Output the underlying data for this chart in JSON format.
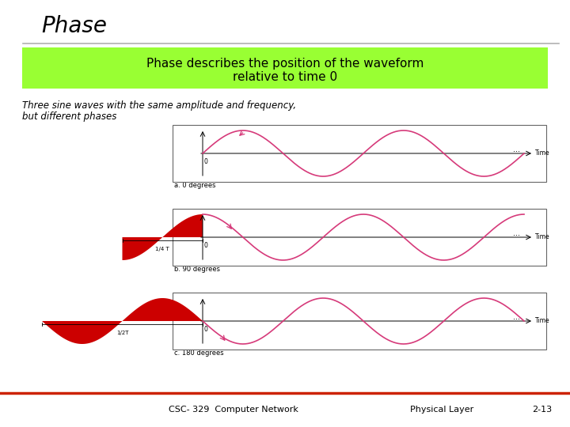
{
  "title": "Phase",
  "subtitle_line1": "Phase describes the position of the waveform",
  "subtitle_line2": "relative to time 0",
  "body_text_line1": "Three sine waves with the same amplitude and frequency,",
  "body_text_line2": "but different phases",
  "wave_color": "#d63a7a",
  "fill_color_red": "#cc0000",
  "green_bg": "#99ff33",
  "white_bg": "#ffffff",
  "footer_text": "CSC- 329  Computer Network",
  "footer_right1": "Physical Layer",
  "footer_right2": "2-13",
  "caption1": "a. 0 degrees",
  "caption2": "b. 90 degrees",
  "caption3": "c. 180 degrees",
  "label_0": "0",
  "label_14T": "1/4 T",
  "label_12T": "1/2T",
  "label_time": "Time"
}
